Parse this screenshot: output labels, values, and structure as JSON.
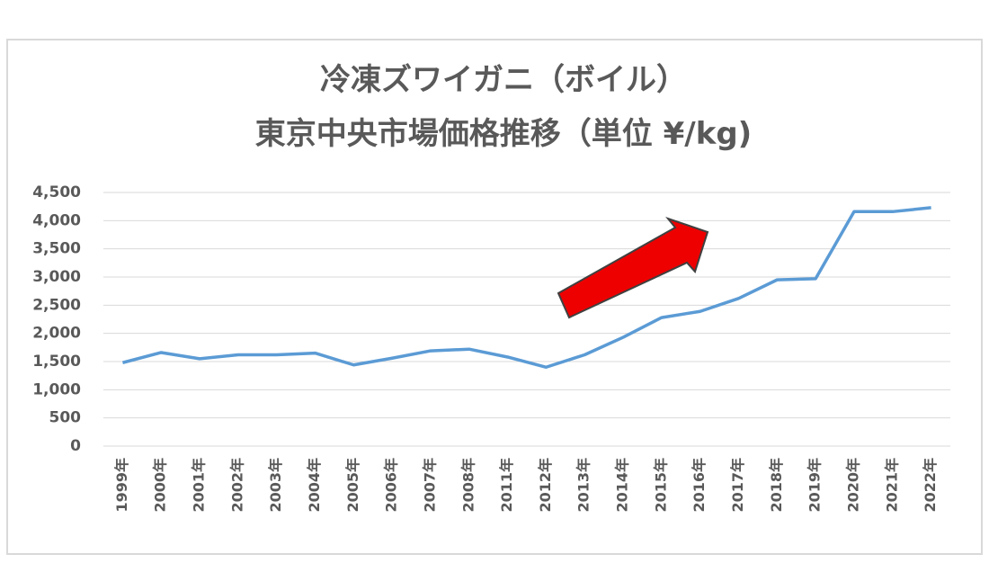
{
  "chart_data": {
    "type": "line",
    "title": [
      "冷凍ズワイガニ（ボイル）",
      "東京中央市場価格推移（単位 ¥/kg)"
    ],
    "categories": [
      "1999年",
      "2000年",
      "2001年",
      "2002年",
      "2003年",
      "2004年",
      "2005年",
      "2006年",
      "2007年",
      "2008年",
      "2011年",
      "2012年",
      "2013年",
      "2014年",
      "2015年",
      "2016年",
      "2017年",
      "2018年",
      "2019年",
      "2020年",
      "2021年",
      "2022年"
    ],
    "series": [
      {
        "color": "#5b9bd5",
        "values": [
          1480,
          1660,
          1550,
          1620,
          1620,
          1650,
          1440,
          1560,
          1690,
          1720,
          1580,
          1400,
          1620,
          1930,
          2280,
          2390,
          2620,
          2950,
          2970,
          4160,
          4160,
          4230
        ]
      }
    ],
    "ylim": [
      0,
      4500
    ],
    "yticks": [
      0,
      500,
      {
        "value": 1000,
        "label": "1,000"
      },
      {
        "value": 1500,
        "label": "1,500"
      },
      {
        "value": 2000,
        "label": "2,000"
      },
      {
        "value": 2500,
        "label": "2,500"
      },
      {
        "value": 3000,
        "label": "3,000"
      },
      {
        "value": 3500,
        "label": "3,500"
      },
      {
        "value": 4000,
        "label": "4,000"
      },
      {
        "value": 4500,
        "label": "4,500"
      }
    ],
    "grid": true
  }
}
